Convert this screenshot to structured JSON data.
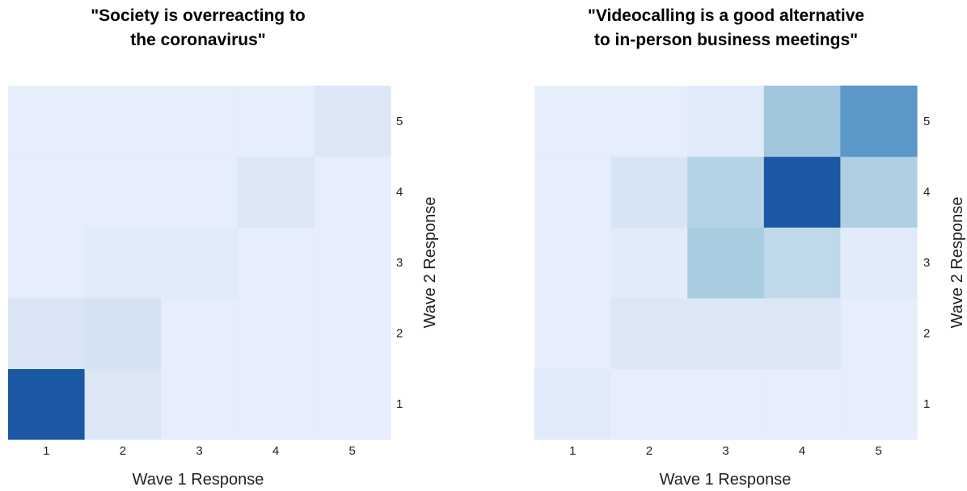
{
  "chart_data": [
    {
      "type": "heatmap",
      "title_lines": [
        "\"Society is overreacting to",
        "the coronavirus\""
      ],
      "xlabel": "Wave 1 Response",
      "ylabel": "Wave 2 Response",
      "x": [
        "1",
        "2",
        "3",
        "4",
        "5"
      ],
      "y": [
        "1",
        "2",
        "3",
        "4",
        "5"
      ],
      "colormap": "Blues",
      "color_range": [
        0,
        1
      ],
      "values": [
        [
          1.0,
          0.1,
          0.02,
          0.02,
          0.02
        ],
        [
          0.12,
          0.16,
          0.02,
          0.02,
          0.02
        ],
        [
          0.02,
          0.05,
          0.05,
          0.02,
          0.02
        ],
        [
          0.02,
          0.02,
          0.02,
          0.1,
          0.02
        ],
        [
          0.02,
          0.02,
          0.02,
          0.02,
          0.1
        ]
      ]
    },
    {
      "type": "heatmap",
      "title_lines": [
        "\"Videocalling is a good alternative",
        "to in-person business meetings\""
      ],
      "xlabel": "Wave 1 Response",
      "ylabel": "Wave 2 Response",
      "x": [
        "1",
        "2",
        "3",
        "4",
        "5"
      ],
      "y": [
        "1",
        "2",
        "3",
        "4",
        "5"
      ],
      "colormap": "Blues",
      "color_range": [
        0,
        1
      ],
      "values": [
        [
          0.06,
          0.02,
          0.02,
          0.02,
          0.02
        ],
        [
          0.02,
          0.1,
          0.1,
          0.1,
          0.02
        ],
        [
          0.02,
          0.05,
          0.35,
          0.25,
          0.05
        ],
        [
          0.02,
          0.14,
          0.3,
          1.0,
          0.32
        ],
        [
          0.02,
          0.02,
          0.06,
          0.38,
          0.64
        ]
      ]
    }
  ]
}
